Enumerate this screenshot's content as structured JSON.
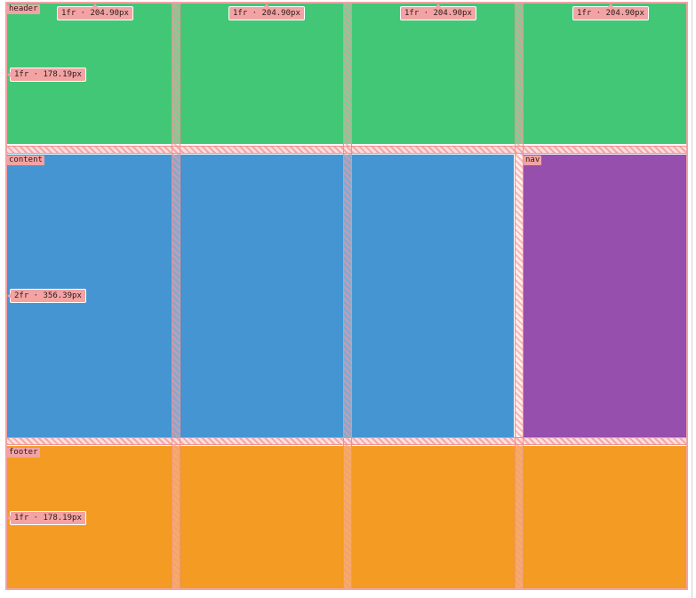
{
  "grid": {
    "areas": {
      "header": "header",
      "content": "content",
      "nav": "nav",
      "footer": "footer"
    },
    "columns": [
      "1fr · 204.90px",
      "1fr · 204.90px",
      "1fr · 204.90px",
      "1fr · 204.90px"
    ],
    "rows": [
      "1fr · 178.19px",
      "2fr · 356.39px",
      "1fr · 178.19px"
    ]
  },
  "colors": {
    "header": "#42c777",
    "content": "#4595d2",
    "nav": "#964fac",
    "footer": "#f39b22",
    "grid_overlay": "#f3a3a3"
  }
}
